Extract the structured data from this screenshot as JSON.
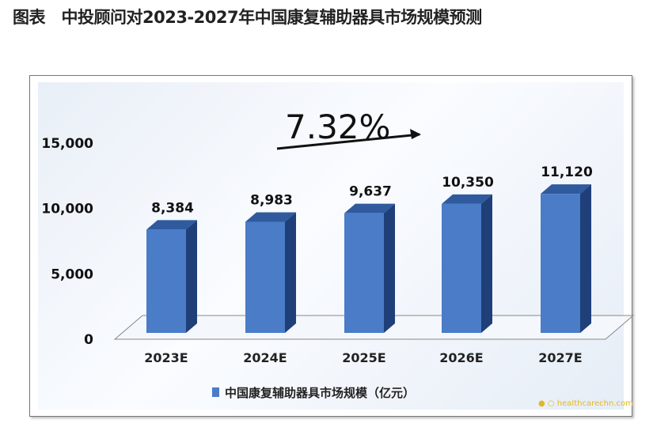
{
  "title": "图表　中投顾问对2023-2027年中国康复辅助器具市场规模预测",
  "chart_data": {
    "type": "bar",
    "categories": [
      "2023E",
      "2024E",
      "2025E",
      "2026E",
      "2027E"
    ],
    "series": [
      {
        "name": "中国康复辅助器具市场规模（亿元）",
        "values": [
          8384,
          8983,
          9637,
          10350,
          11120
        ]
      }
    ],
    "data_labels": [
      "8,384",
      "8,983",
      "9,637",
      "10,350",
      "11,120"
    ],
    "yticks": [
      "0",
      "5,000",
      "10,000",
      "15,000"
    ],
    "ylim": [
      0,
      15000
    ],
    "annotation": "7.32%",
    "legend_position": "bottom",
    "bar_color": "#4a7cc8",
    "grid": false
  },
  "watermark": "healthcarechn.com"
}
